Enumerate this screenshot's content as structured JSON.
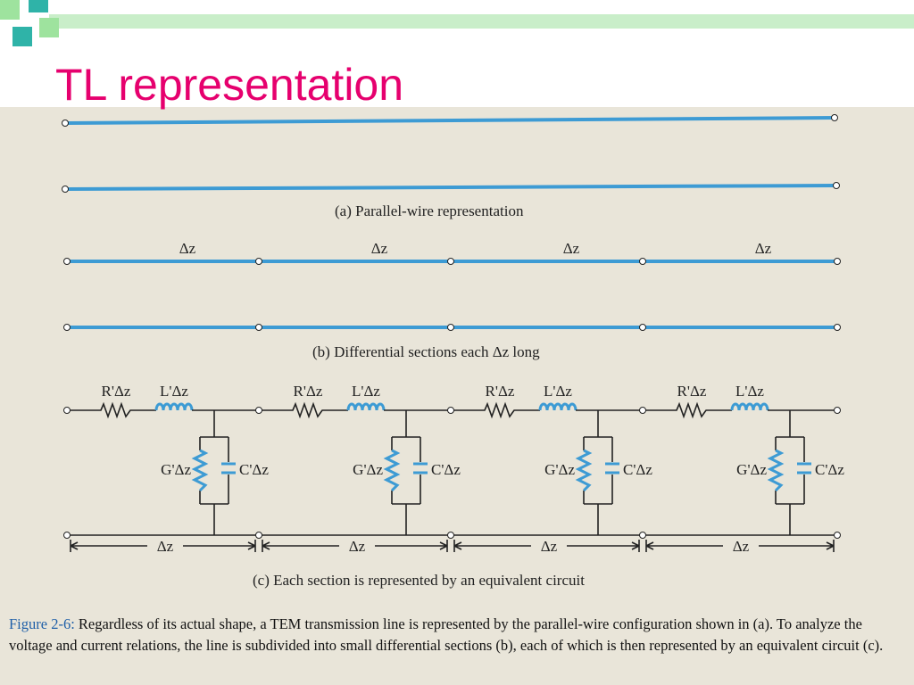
{
  "header": {
    "title": "TL representation"
  },
  "figure": {
    "panel_a": {
      "caption": "(a)  Parallel-wire representation"
    },
    "panel_b": {
      "caption": "(b)  Differential sections each Δz long",
      "section_labels": [
        "Δz",
        "Δz",
        "Δz",
        "Δz"
      ]
    },
    "panel_c": {
      "caption": "(c)  Each section is represented by an equivalent circuit",
      "sections": [
        {
          "resistor": "R'Δz",
          "inductor": "L'Δz",
          "conductance": "G'Δz",
          "capacitor": "C'Δz",
          "length": "Δz"
        },
        {
          "resistor": "R'Δz",
          "inductor": "L'Δz",
          "conductance": "G'Δz",
          "capacitor": "C'Δz",
          "length": "Δz"
        },
        {
          "resistor": "R'Δz",
          "inductor": "L'Δz",
          "conductance": "G'Δz",
          "capacitor": "C'Δz",
          "length": "Δz"
        },
        {
          "resistor": "R'Δz",
          "inductor": "L'Δz",
          "conductance": "G'Δz",
          "capacitor": "C'Δz",
          "length": "Δz"
        }
      ]
    },
    "caption": {
      "label": "Figure 2-6:",
      "text": "Regardless of its actual shape, a TEM transmission line is represented by the parallel-wire configuration shown in (a). To analyze the voltage and current relations, the line is subdivided into small differential sections (b), each of which is then represented by an equivalent circuit (c)."
    }
  }
}
